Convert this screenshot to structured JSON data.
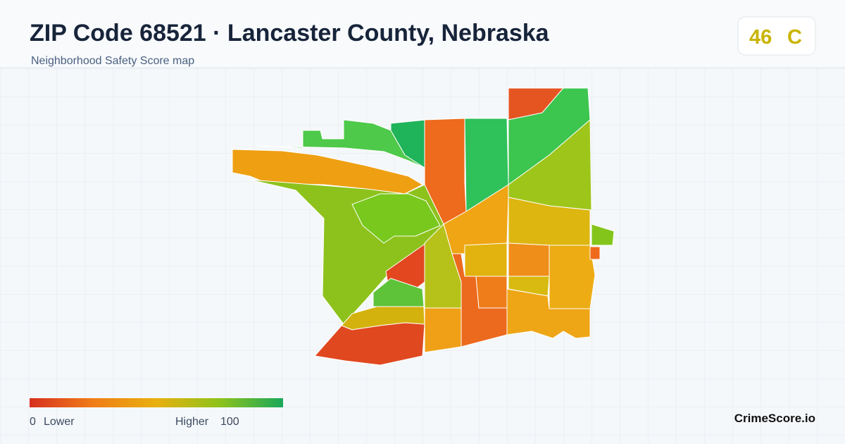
{
  "header": {
    "title": "ZIP Code 68521 · Lancaster County, Nebraska",
    "subtitle": "Neighborhood Safety Score map"
  },
  "score": {
    "value": 46,
    "grade": "C",
    "color": "#c9b400"
  },
  "legend": {
    "min": 0,
    "min_label": "Lower",
    "max": 100,
    "max_label": "Higher",
    "colors": [
      "#d7301f",
      "#f07d18",
      "#e8b00e",
      "#8ec31c",
      "#1aa85a"
    ]
  },
  "brand": "CrimeScore.io"
}
